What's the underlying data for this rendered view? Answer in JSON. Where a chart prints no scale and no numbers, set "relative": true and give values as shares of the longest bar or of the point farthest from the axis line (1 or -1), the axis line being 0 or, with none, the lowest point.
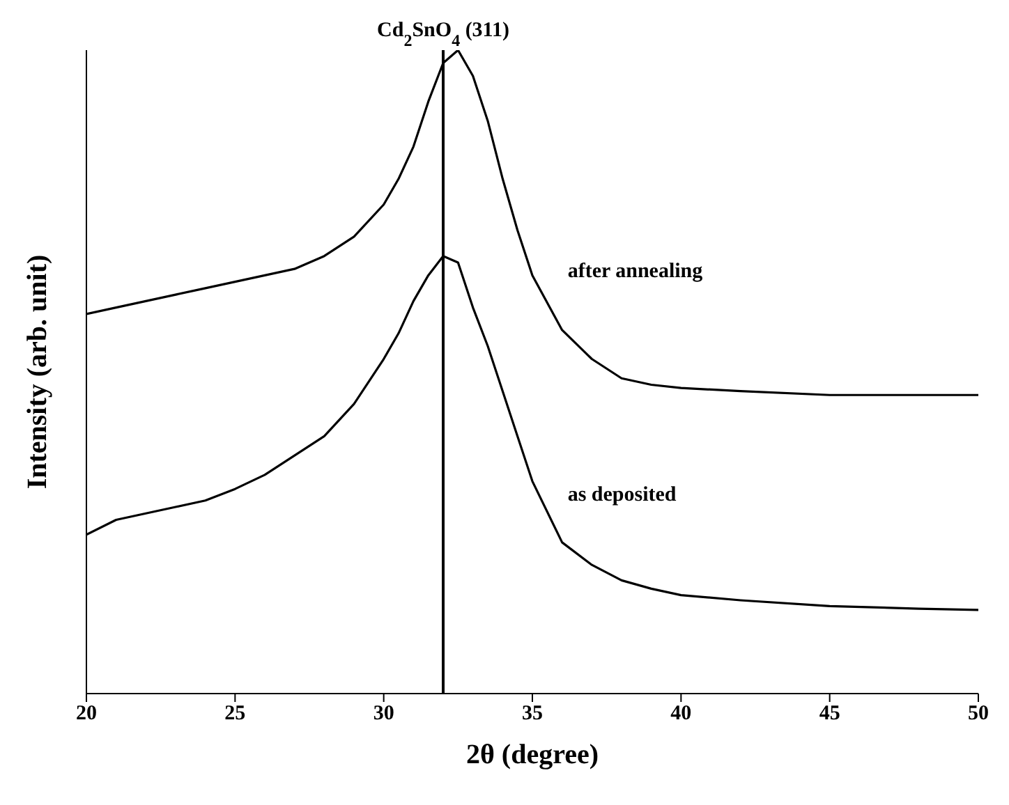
{
  "chart_data": {
    "type": "line",
    "relative": true,
    "xlabel": "2θ (degree)",
    "ylabel": "Intensity (arb. unit)",
    "xlim": [
      20,
      50
    ],
    "xticks": [
      20,
      25,
      30,
      35,
      40,
      45,
      50
    ],
    "x": [
      20,
      21,
      22,
      23,
      24,
      25,
      26,
      27,
      28,
      29,
      30,
      30.5,
      31,
      31.5,
      32,
      32.5,
      33,
      33.5,
      34,
      34.5,
      35,
      36,
      37,
      38,
      39,
      40,
      42,
      45,
      48,
      50
    ],
    "series": [
      {
        "name": "after annealing",
        "color": "#000000",
        "values": [
          0.59,
          0.6,
          0.61,
          0.62,
          0.63,
          0.64,
          0.65,
          0.66,
          0.68,
          0.71,
          0.76,
          0.8,
          0.85,
          0.92,
          0.98,
          1.0,
          0.96,
          0.89,
          0.8,
          0.72,
          0.65,
          0.565,
          0.52,
          0.49,
          0.48,
          0.475,
          0.47,
          0.464,
          0.464,
          0.464
        ]
      },
      {
        "name": "as deposited",
        "color": "#000000",
        "values": [
          0.247,
          0.27,
          0.28,
          0.29,
          0.3,
          0.318,
          0.34,
          0.37,
          0.4,
          0.45,
          0.52,
          0.56,
          0.61,
          0.65,
          0.68,
          0.67,
          0.6,
          0.54,
          0.47,
          0.4,
          0.33,
          0.235,
          0.2,
          0.176,
          0.163,
          0.153,
          0.145,
          0.136,
          0.132,
          0.13
        ]
      }
    ],
    "ref_lines": [
      {
        "axis": "x",
        "value": 32,
        "label": "Cd$_{2}$SnO$_{4}$ (311)",
        "color": "#000000"
      }
    ],
    "grid": false,
    "legend": false,
    "marker": "none",
    "line_style": "solid"
  }
}
